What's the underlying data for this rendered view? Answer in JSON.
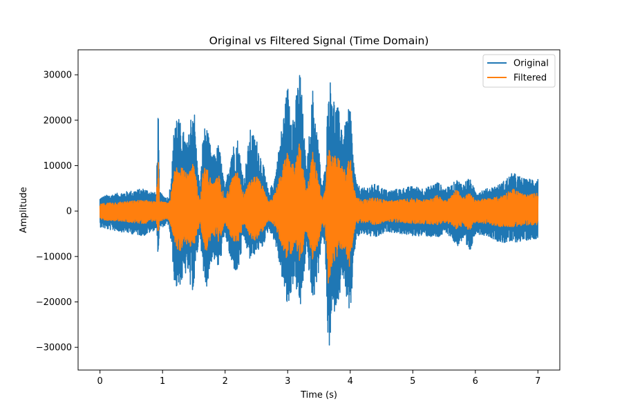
{
  "chart_data": {
    "type": "line",
    "title": "Original vs Filtered Signal (Time Domain)",
    "xlabel": "Time (s)",
    "ylabel": "Amplitude",
    "xlim": [
      -0.35,
      7.35
    ],
    "ylim": [
      -35000,
      35500
    ],
    "x_ticks": [
      0,
      1,
      2,
      3,
      4,
      5,
      6,
      7
    ],
    "y_ticks": [
      -30000,
      -20000,
      -10000,
      0,
      10000,
      20000,
      30000
    ],
    "grid": false,
    "legend_position": "top-right",
    "series": [
      {
        "name": "Original",
        "color": "#1f77b4",
        "envelope": {
          "t": [
            0.0,
            0.1,
            0.3,
            0.5,
            0.7,
            0.9,
            0.93,
            0.95,
            1.0,
            1.1,
            1.15,
            1.2,
            1.3,
            1.4,
            1.45,
            1.5,
            1.55,
            1.6,
            1.65,
            1.7,
            1.8,
            1.9,
            2.0,
            2.1,
            2.2,
            2.3,
            2.4,
            2.5,
            2.6,
            2.7,
            2.8,
            2.9,
            3.0,
            3.1,
            3.15,
            3.2,
            3.25,
            3.3,
            3.4,
            3.5,
            3.55,
            3.6,
            3.65,
            3.7,
            3.75,
            3.8,
            3.9,
            4.0,
            4.05,
            4.1,
            4.2,
            4.4,
            4.6,
            4.8,
            5.0,
            5.2,
            5.4,
            5.5,
            5.6,
            5.7,
            5.8,
            5.9,
            6.0,
            6.2,
            6.4,
            6.6,
            6.8,
            7.0
          ],
          "upper": [
            3000,
            3500,
            4000,
            4500,
            5000,
            4000,
            23500,
            4500,
            3500,
            3000,
            10000,
            22500,
            19000,
            15000,
            21000,
            24500,
            12000,
            5000,
            18000,
            19000,
            12000,
            15000,
            5000,
            14000,
            16000,
            7000,
            18000,
            16000,
            11000,
            4000,
            8000,
            18000,
            28000,
            21000,
            27000,
            32000,
            20000,
            9000,
            27000,
            14000,
            5000,
            10000,
            27000,
            30000,
            24000,
            23000,
            18000,
            24000,
            12000,
            6000,
            5000,
            6000,
            4500,
            5000,
            5500,
            5000,
            6500,
            5000,
            5500,
            7000,
            6000,
            7500,
            4500,
            5000,
            6000,
            8500,
            7000,
            7500
          ],
          "lower": [
            -3500,
            -4000,
            -4500,
            -5000,
            -5500,
            -4000,
            -10000,
            -4000,
            -3500,
            -3000,
            -9000,
            -17500,
            -16000,
            -13000,
            -18000,
            -17000,
            -10000,
            -5000,
            -15000,
            -17000,
            -10000,
            -13000,
            -5000,
            -12000,
            -14000,
            -6000,
            -11000,
            -9000,
            -8000,
            -4000,
            -7000,
            -14000,
            -22000,
            -15000,
            -18000,
            -22000,
            -16000,
            -8000,
            -21000,
            -13000,
            -5000,
            -9000,
            -32000,
            -26000,
            -22000,
            -20000,
            -15000,
            -26000,
            -11000,
            -6000,
            -5000,
            -6000,
            -4500,
            -5000,
            -5500,
            -5500,
            -6000,
            -5000,
            -5500,
            -8000,
            -6500,
            -10000,
            -5000,
            -5500,
            -7000,
            -7000,
            -6500,
            -6000
          ]
        }
      },
      {
        "name": "Filtered",
        "color": "#ff7f0e",
        "envelope": {
          "t": [
            0.0,
            0.1,
            0.3,
            0.5,
            0.7,
            0.9,
            0.93,
            0.95,
            1.0,
            1.1,
            1.15,
            1.2,
            1.3,
            1.4,
            1.45,
            1.5,
            1.55,
            1.6,
            1.65,
            1.7,
            1.8,
            1.9,
            2.0,
            2.1,
            2.2,
            2.3,
            2.4,
            2.5,
            2.6,
            2.7,
            2.8,
            2.9,
            3.0,
            3.1,
            3.15,
            3.2,
            3.25,
            3.3,
            3.4,
            3.5,
            3.55,
            3.6,
            3.65,
            3.7,
            3.75,
            3.8,
            3.9,
            4.0,
            4.05,
            4.1,
            4.2,
            4.4,
            4.6,
            4.8,
            5.0,
            5.2,
            5.4,
            5.5,
            5.6,
            5.7,
            5.8,
            5.9,
            6.0,
            6.2,
            6.4,
            6.6,
            6.8,
            7.0
          ],
          "upper": [
            1500,
            1800,
            2000,
            2200,
            2500,
            2000,
            12500,
            2500,
            2000,
            1800,
            5000,
            10000,
            11000,
            8000,
            9000,
            11000,
            6000,
            2500,
            9000,
            10000,
            6000,
            8000,
            2500,
            7000,
            9000,
            3500,
            7000,
            8000,
            5500,
            2000,
            4000,
            9000,
            13000,
            10000,
            12000,
            16000,
            9000,
            4500,
            13000,
            7000,
            2500,
            5000,
            14000,
            12000,
            12500,
            12000,
            9000,
            12500,
            6000,
            3000,
            2500,
            3000,
            2300,
            2500,
            2800,
            2500,
            3500,
            2500,
            3000,
            5000,
            3000,
            4000,
            2500,
            2800,
            3200,
            5000,
            3500,
            4000
          ],
          "lower": [
            -1800,
            -2000,
            -2200,
            -2500,
            -2800,
            -2000,
            -5500,
            -2200,
            -2000,
            -1800,
            -4500,
            -8000,
            -9000,
            -7000,
            -8000,
            -8500,
            -5000,
            -2500,
            -7500,
            -9000,
            -5000,
            -7000,
            -2500,
            -6000,
            -7500,
            -3000,
            -6000,
            -6500,
            -4500,
            -2000,
            -3500,
            -7500,
            -11000,
            -8000,
            -9000,
            -12000,
            -8000,
            -4000,
            -11000,
            -6500,
            -2500,
            -4500,
            -16500,
            -13000,
            -11000,
            -10000,
            -8000,
            -13000,
            -5500,
            -3000,
            -2500,
            -3000,
            -2300,
            -2500,
            -2800,
            -2800,
            -3000,
            -2500,
            -3000,
            -4000,
            -3200,
            -4500,
            -2500,
            -2800,
            -3500,
            -3500,
            -3200,
            -3000
          ]
        }
      }
    ]
  }
}
